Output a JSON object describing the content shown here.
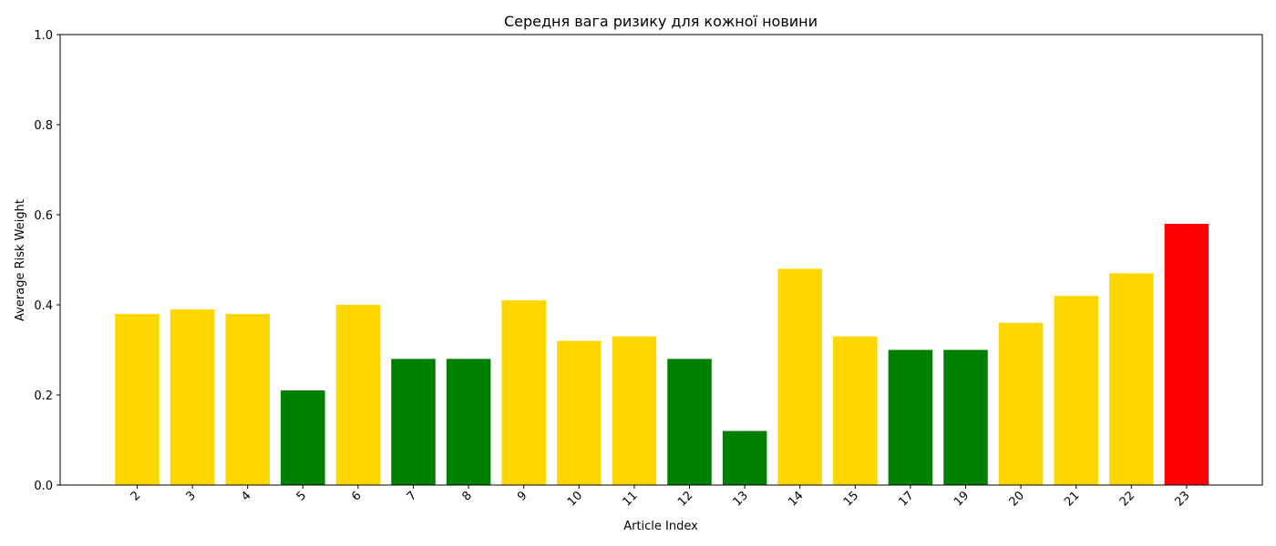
{
  "chart_data": {
    "type": "bar",
    "title": "Середня вага ризику для кожної новини",
    "xlabel": "Article Index",
    "ylabel": "Average Risk Weight",
    "ylim": [
      0,
      1.0
    ],
    "yticks": [
      "0.0",
      "0.2",
      "0.4",
      "0.6",
      "0.8",
      "1.0"
    ],
    "grid": false,
    "categories": [
      "2",
      "3",
      "4",
      "5",
      "6",
      "7",
      "8",
      "9",
      "10",
      "11",
      "12",
      "13",
      "14",
      "15",
      "17",
      "19",
      "20",
      "21",
      "22",
      "23"
    ],
    "values": [
      0.38,
      0.39,
      0.38,
      0.21,
      0.4,
      0.28,
      0.28,
      0.41,
      0.32,
      0.33,
      0.28,
      0.12,
      0.48,
      0.33,
      0.3,
      0.3,
      0.36,
      0.42,
      0.47,
      0.58
    ],
    "bar_colors": [
      "#ffd700",
      "#ffd700",
      "#ffd700",
      "#008000",
      "#ffd700",
      "#008000",
      "#008000",
      "#ffd700",
      "#ffd700",
      "#ffd700",
      "#008000",
      "#008000",
      "#ffd700",
      "#ffd700",
      "#008000",
      "#008000",
      "#ffd700",
      "#ffd700",
      "#ffd700",
      "#ff0000"
    ]
  }
}
